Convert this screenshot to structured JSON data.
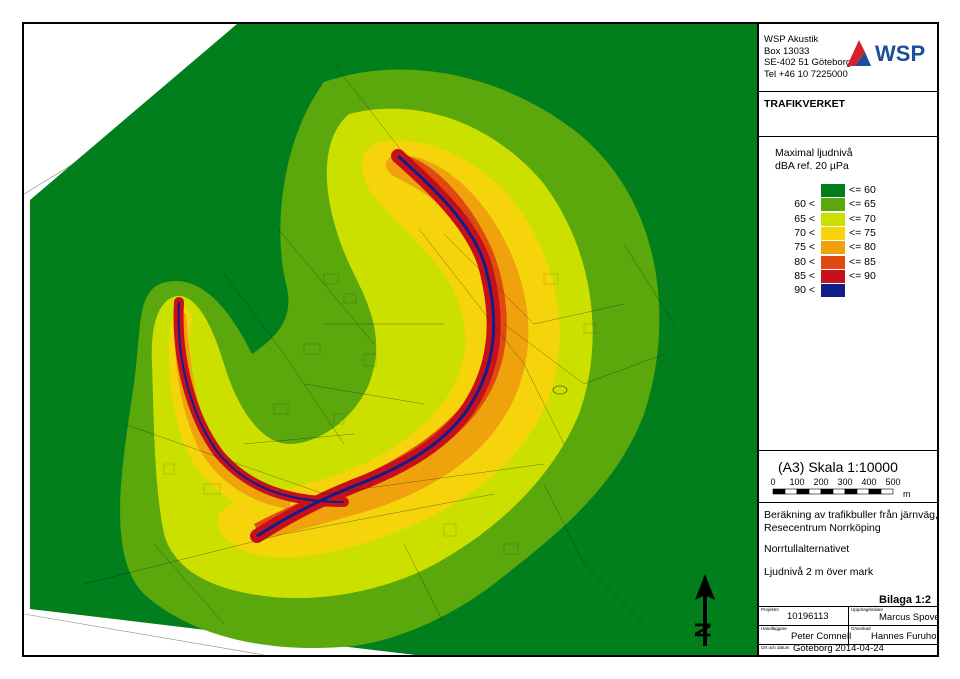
{
  "company": {
    "name": "WSP Akustik",
    "box": "Box 13033",
    "address": "SE-402 51 Göteborg",
    "phone": "Tel +46 10 7225000",
    "logo_text": "WSP"
  },
  "client": "TRAFIKVERKET",
  "legend": {
    "title_line1": "Maximal ljudnivå",
    "title_line2": "dBA ref. 20 µPa",
    "classes": [
      {
        "low": "",
        "high": "<= 60",
        "color": "#007f1c"
      },
      {
        "low": "60 <",
        "high": "<= 65",
        "color": "#5aa80c"
      },
      {
        "low": "65 <",
        "high": "<= 70",
        "color": "#cce000"
      },
      {
        "low": "70 <",
        "high": "<= 75",
        "color": "#f5d40c"
      },
      {
        "low": "75 <",
        "high": "<= 80",
        "color": "#f0a20c"
      },
      {
        "low": "80 <",
        "high": "<= 85",
        "color": "#e04a10"
      },
      {
        "low": "85 <",
        "high": "<= 90",
        "color": "#c8101a"
      },
      {
        "low": "90 <",
        "high": "",
        "color": "#101e8c"
      }
    ]
  },
  "scale": {
    "title": "(A3) Skala 1:10000",
    "ticks": [
      "0",
      "100",
      "200",
      "300",
      "400",
      "500"
    ],
    "unit": "m"
  },
  "description": {
    "line1": "Beräkning av trafikbuller från järnväg,",
    "line2": "Resecentrum Norrköping",
    "alternative": "Norrtullalternativet",
    "height": "Ljudnivå 2 m över mark"
  },
  "bilaga": "Bilaga 1:2",
  "titleblock": {
    "projekt_label": "Projektnr",
    "projekt": "10196113",
    "uppdrag_label": "Uppdragsledare",
    "uppdrag": "Marcus Spovell",
    "handl_label": "Handläggare",
    "handl": "Peter Comnell",
    "gransk_label": "Granskad",
    "gransk": "Hannes Furuholm",
    "ort_label": "Ort och datum",
    "ort": "Göteborg 2014-04-24"
  },
  "north_label": "N"
}
